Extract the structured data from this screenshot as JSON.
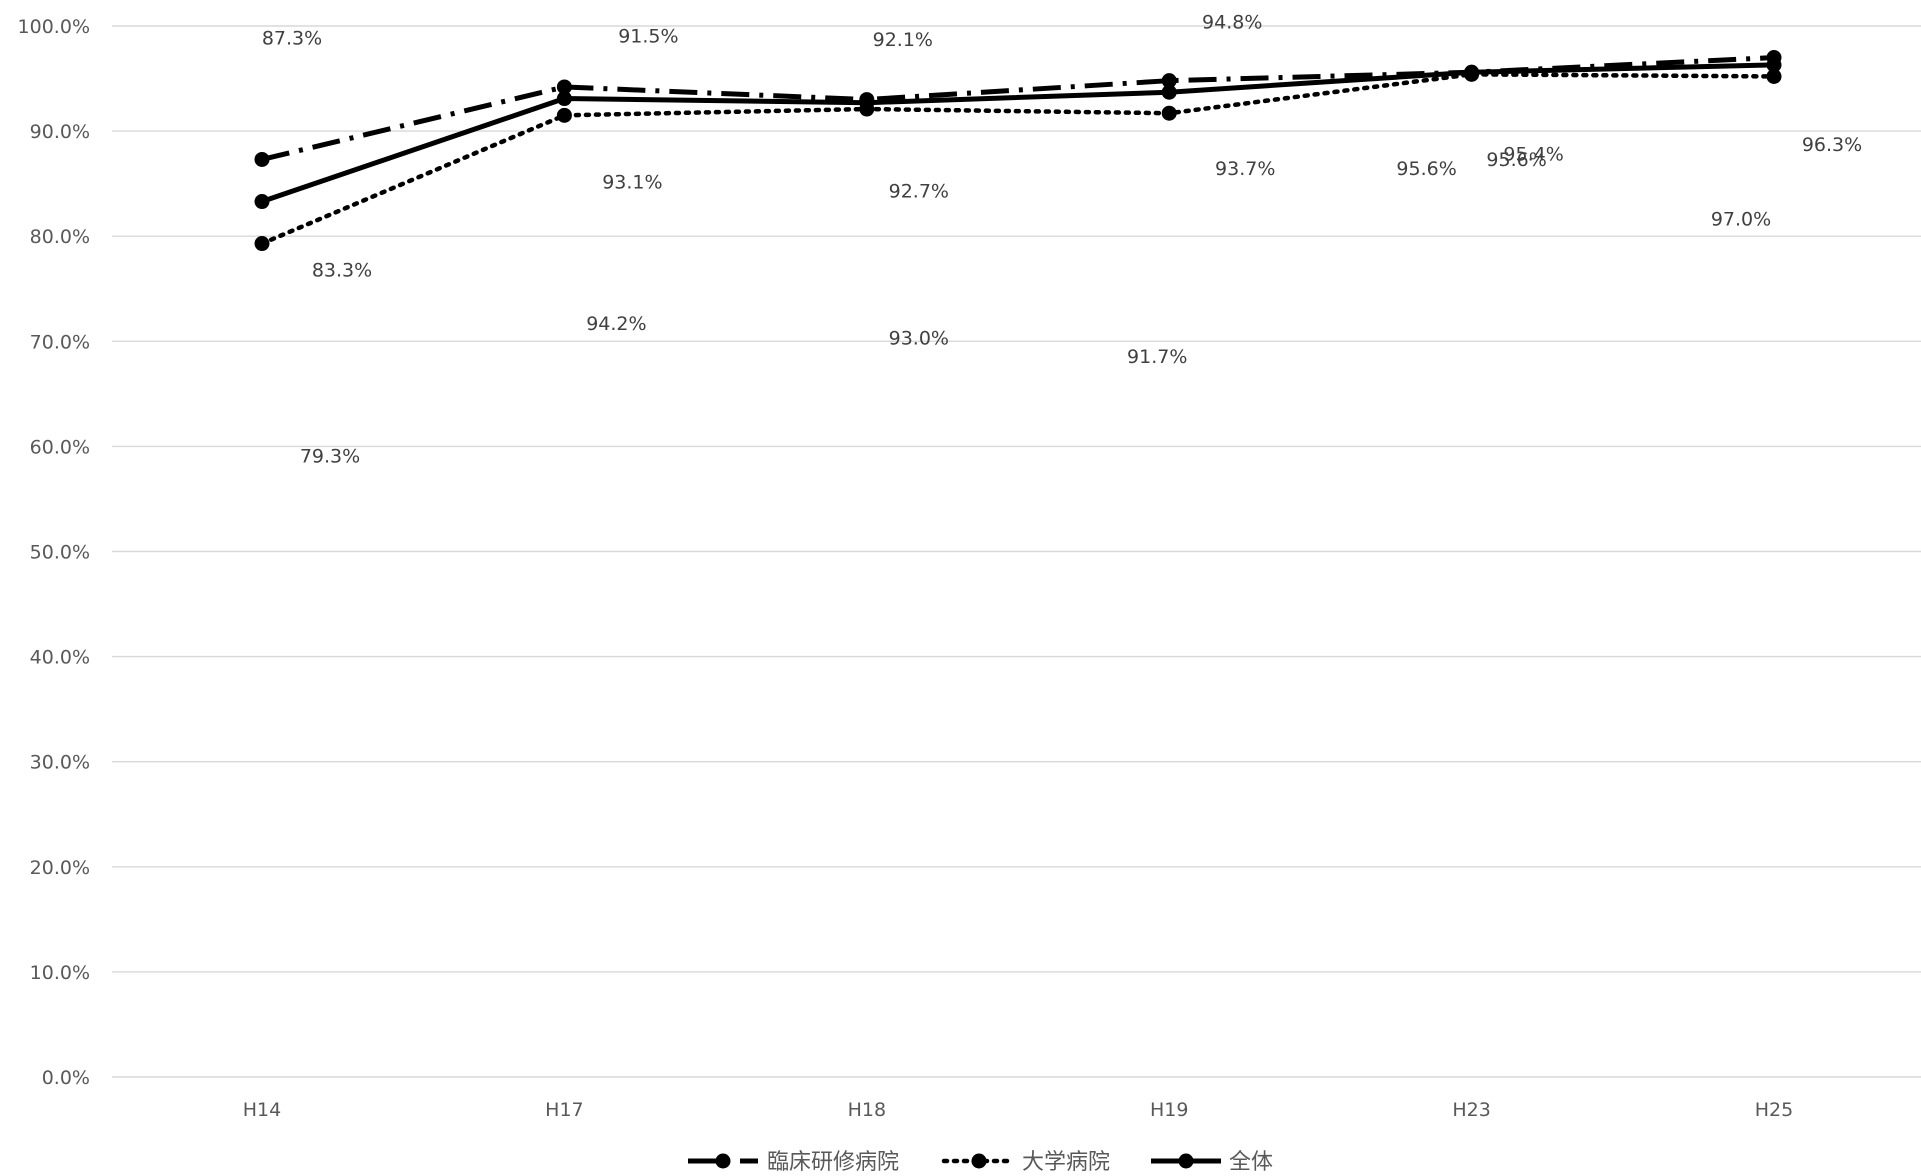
{
  "chart_data": {
    "type": "line",
    "categories": [
      "H14",
      "H17",
      "H18",
      "H19",
      "H23",
      "H25"
    ],
    "ylim": [
      0,
      100
    ],
    "y_ticks": [
      "0.0%",
      "10.0%",
      "20.0%",
      "30.0%",
      "40.0%",
      "50.0%",
      "60.0%",
      "70.0%",
      "80.0%",
      "90.0%",
      "100.0%"
    ],
    "grid": true,
    "legend_position": "bottom",
    "series": [
      {
        "name": "臨床研修病院",
        "dash": "dash-dot",
        "color": "#000000",
        "values": [
          87.3,
          94.2,
          93.0,
          94.8,
          95.6,
          97.0
        ],
        "labels": [
          "87.3%",
          "94.2%",
          "93.0%",
          "94.8%",
          "95.6%",
          "97.0%"
        ]
      },
      {
        "name": "大学病院",
        "dash": "dotted",
        "color": "#000000",
        "values": [
          79.3,
          91.5,
          92.1,
          91.7,
          95.4,
          95.2
        ],
        "labels": [
          "79.3%",
          "91.5%",
          "92.1%",
          "91.7%",
          "95.4%",
          "95.2%"
        ]
      },
      {
        "name": "全体",
        "dash": "solid",
        "color": "#000000",
        "values": [
          83.3,
          93.1,
          92.7,
          93.7,
          95.6,
          96.3
        ],
        "labels": [
          "83.3%",
          "93.1%",
          "92.7%",
          "93.7%",
          "95.6%",
          "96.3%"
        ]
      }
    ]
  }
}
